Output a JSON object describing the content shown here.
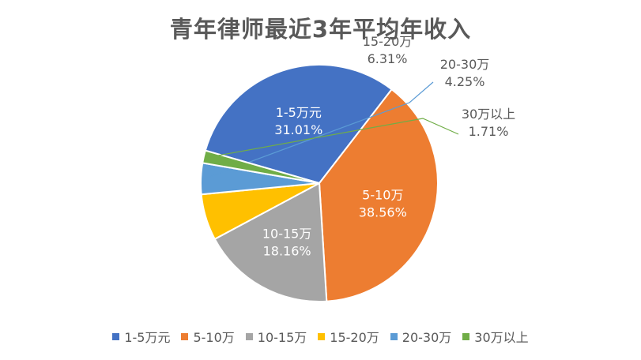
{
  "chart_data": {
    "type": "pie",
    "title": "青年律师最近3年平均年收入",
    "slices": [
      {
        "label": "1-5万元",
        "value": 31.01,
        "value_text": "31.01%",
        "color": "#4472C4",
        "label_side": "inside",
        "label_color": "#ffffff"
      },
      {
        "label": "5-10万",
        "value": 38.56,
        "value_text": "38.56%",
        "color": "#ED7D31",
        "label_side": "inside",
        "label_color": "#ffffff"
      },
      {
        "label": "10-15万",
        "value": 18.16,
        "value_text": "18.16%",
        "color": "#A5A5A5",
        "label_side": "inside",
        "label_color": "#ffffff"
      },
      {
        "label": "15-20万",
        "value": 6.31,
        "value_text": "6.31%",
        "color": "#FFC000",
        "label_side": "outside",
        "label_color": "#595959"
      },
      {
        "label": "20-30万",
        "value": 4.25,
        "value_text": "4.25%",
        "color": "#5B9BD5",
        "label_side": "outside",
        "label_color": "#595959"
      },
      {
        "label": "30万以上",
        "value": 1.71,
        "value_text": "1.71%",
        "color": "#70AD47",
        "label_side": "outside",
        "label_color": "#595959"
      }
    ],
    "legend_position": "bottom"
  }
}
